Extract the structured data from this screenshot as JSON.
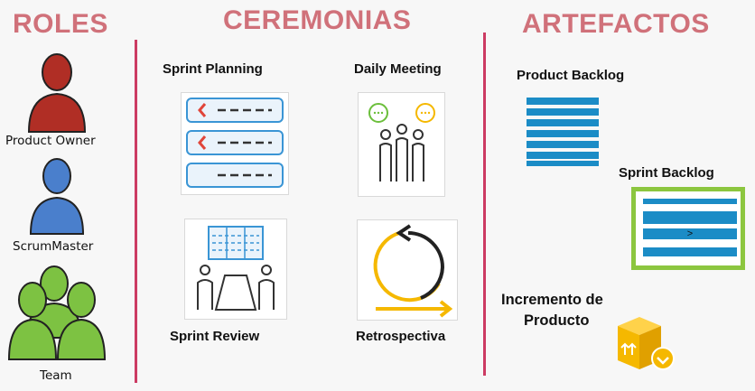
{
  "sections": {
    "roles": "ROLES",
    "ceremonies": "CEREMONIAS",
    "artifacts": "ARTEFACTOS"
  },
  "roles": [
    {
      "label": "Product Owner",
      "color": "#b02e25"
    },
    {
      "label": "ScrumMaster",
      "color": "#4a7fcc"
    },
    {
      "label": "Team",
      "color": "#7dc242"
    }
  ],
  "ceremonies": {
    "sprint_planning": "Sprint Planning",
    "daily_meeting": "Daily Meeting",
    "sprint_review": "Sprint Review",
    "retrospective": "Retrospectiva"
  },
  "artifacts": {
    "product_backlog": "Product Backlog",
    "sprint_backlog": "Sprint Backlog",
    "sprint_backlog_marker": ">",
    "increment_line1": "Incremento de",
    "increment_line2": "Producto"
  },
  "colors": {
    "heading": "#d0717a",
    "divider": "#cc3b63",
    "backlog_blue": "#1b8cc6",
    "sprint_frame_green": "#8cc63f",
    "accent_yellow": "#f5b800"
  }
}
